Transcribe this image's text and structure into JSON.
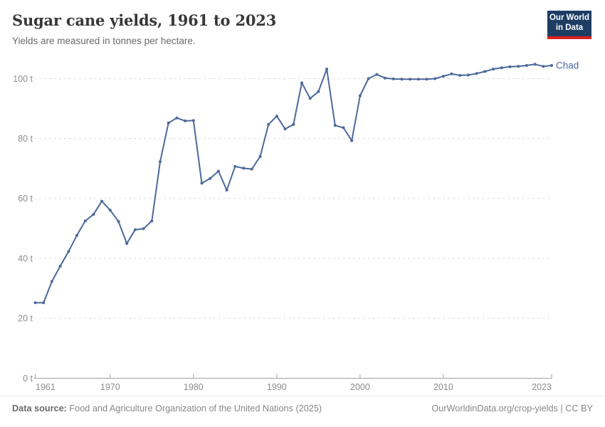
{
  "header": {
    "title": "Sugar cane yields, 1961 to 2023",
    "subtitle": "Yields are measured in tonnes per hectare."
  },
  "logo": {
    "line1": "Our World",
    "line2": "in Data"
  },
  "chart_data": {
    "type": "line",
    "title": "Sugar cane yields, 1961 to 2023",
    "unit": "tonnes per hectare",
    "entity_label": "Chad",
    "line_color": "#4c699b",
    "grid": true,
    "xlim": [
      1961,
      2023
    ],
    "ylim": [
      0,
      105
    ],
    "y_ticks": [
      {
        "value": 0,
        "label": "0 t"
      },
      {
        "value": 20,
        "label": "20 t"
      },
      {
        "value": 40,
        "label": "40 t"
      },
      {
        "value": 60,
        "label": "60 t"
      },
      {
        "value": 80,
        "label": "80 t"
      },
      {
        "value": 100,
        "label": "100 t"
      }
    ],
    "x_ticks": [
      {
        "year": 1961,
        "label": "1961"
      },
      {
        "year": 1970,
        "label": "1970"
      },
      {
        "year": 1980,
        "label": "1980"
      },
      {
        "year": 1990,
        "label": "1990"
      },
      {
        "year": 2000,
        "label": "2000"
      },
      {
        "year": 2010,
        "label": "2010"
      },
      {
        "year": 2023,
        "label": "2023"
      }
    ],
    "x": [
      1961,
      1962,
      1963,
      1964,
      1965,
      1966,
      1967,
      1968,
      1969,
      1970,
      1971,
      1972,
      1973,
      1974,
      1975,
      1976,
      1977,
      1978,
      1979,
      1980,
      1981,
      1982,
      1983,
      1984,
      1985,
      1986,
      1987,
      1988,
      1989,
      1990,
      1991,
      1992,
      1993,
      1994,
      1995,
      1996,
      1997,
      1998,
      1999,
      2000,
      2001,
      2002,
      2003,
      2004,
      2005,
      2006,
      2007,
      2008,
      2009,
      2010,
      2011,
      2012,
      2013,
      2014,
      2015,
      2016,
      2017,
      2018,
      2019,
      2020,
      2021,
      2022,
      2023
    ],
    "series": [
      {
        "name": "Chad",
        "values": [
          25.2,
          25.2,
          32.3,
          37.4,
          42.3,
          47.7,
          52.5,
          54.7,
          59.1,
          56.1,
          52.3,
          45.0,
          49.6,
          49.9,
          52.5,
          72.3,
          85.2,
          86.9,
          85.9,
          86.0,
          65.1,
          66.7,
          69.1,
          62.8,
          70.7,
          70.1,
          69.8,
          74.0,
          84.7,
          87.5,
          83.2,
          84.7,
          98.6,
          93.4,
          95.7,
          103.2,
          84.4,
          83.6,
          79.3,
          94.3,
          100.0,
          101.4,
          100.2,
          99.9,
          99.8,
          99.8,
          99.8,
          99.8,
          100.0,
          100.8,
          101.6,
          101.1,
          101.2,
          101.7,
          102.4,
          103.2,
          103.6,
          104.0,
          104.1,
          104.4,
          104.8,
          104.1,
          104.4
        ]
      }
    ]
  },
  "footer": {
    "source_label": "Data source:",
    "source_text": " Food and Agriculture Organization of the United Nations (2025)",
    "right_text": "OurWorldinData.org/crop-yields | CC BY"
  },
  "colors": {
    "line": "#4c699b",
    "logo_navy": "#1d3d63",
    "logo_red": "#dc2121",
    "axis": "#a1a1a1",
    "gridline": "#dcdcdc",
    "tick_label": "#8c8c8c"
  }
}
